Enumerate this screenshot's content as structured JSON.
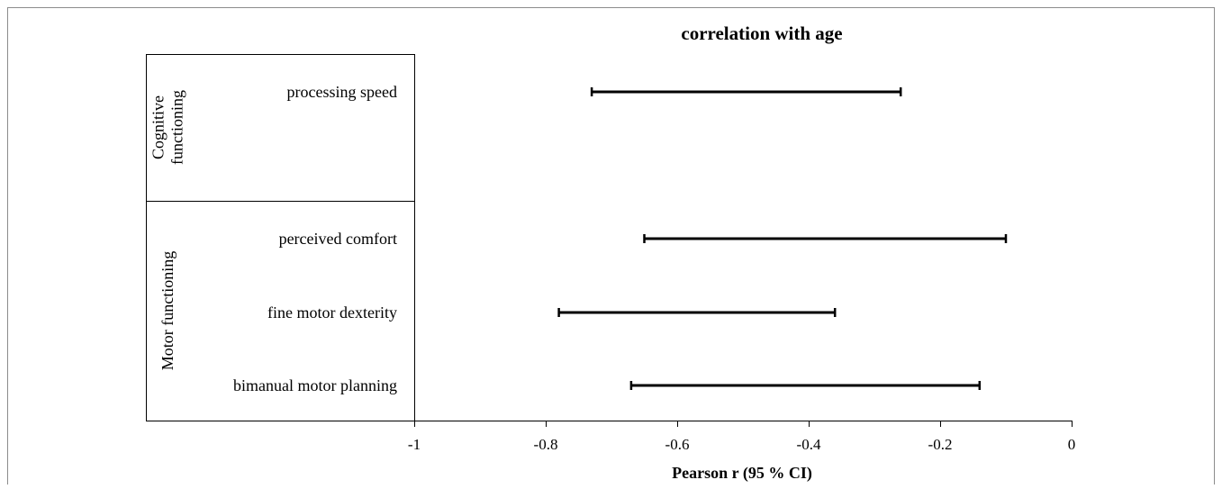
{
  "chart_data": {
    "type": "forest",
    "title": "correlation with age",
    "xlabel": "Pearson r (95 % CI)",
    "xlim": [
      -1,
      0
    ],
    "xticks": [
      -1,
      -0.8,
      -0.6,
      -0.4,
      -0.2,
      0
    ],
    "xtick_labels": [
      "-1",
      "-0.8",
      "-0.6",
      "-0.4",
      "-0.2",
      "0"
    ],
    "groups": [
      {
        "label": "Cognitive functioning",
        "label_lines": [
          "Cognitive",
          "functioning"
        ],
        "items": [
          {
            "label": "processing speed",
            "lower": -0.73,
            "upper": -0.26
          }
        ]
      },
      {
        "label": "Motor functioning",
        "label_lines": [
          "Motor functioning"
        ],
        "items": [
          {
            "label": "perceived comfort",
            "lower": -0.65,
            "upper": -0.1
          },
          {
            "label": "fine motor dexterity",
            "lower": -0.78,
            "upper": -0.36
          },
          {
            "label": "bimanual motor planning",
            "lower": -0.67,
            "upper": -0.14
          }
        ]
      }
    ],
    "grid": false,
    "legend": "none"
  }
}
